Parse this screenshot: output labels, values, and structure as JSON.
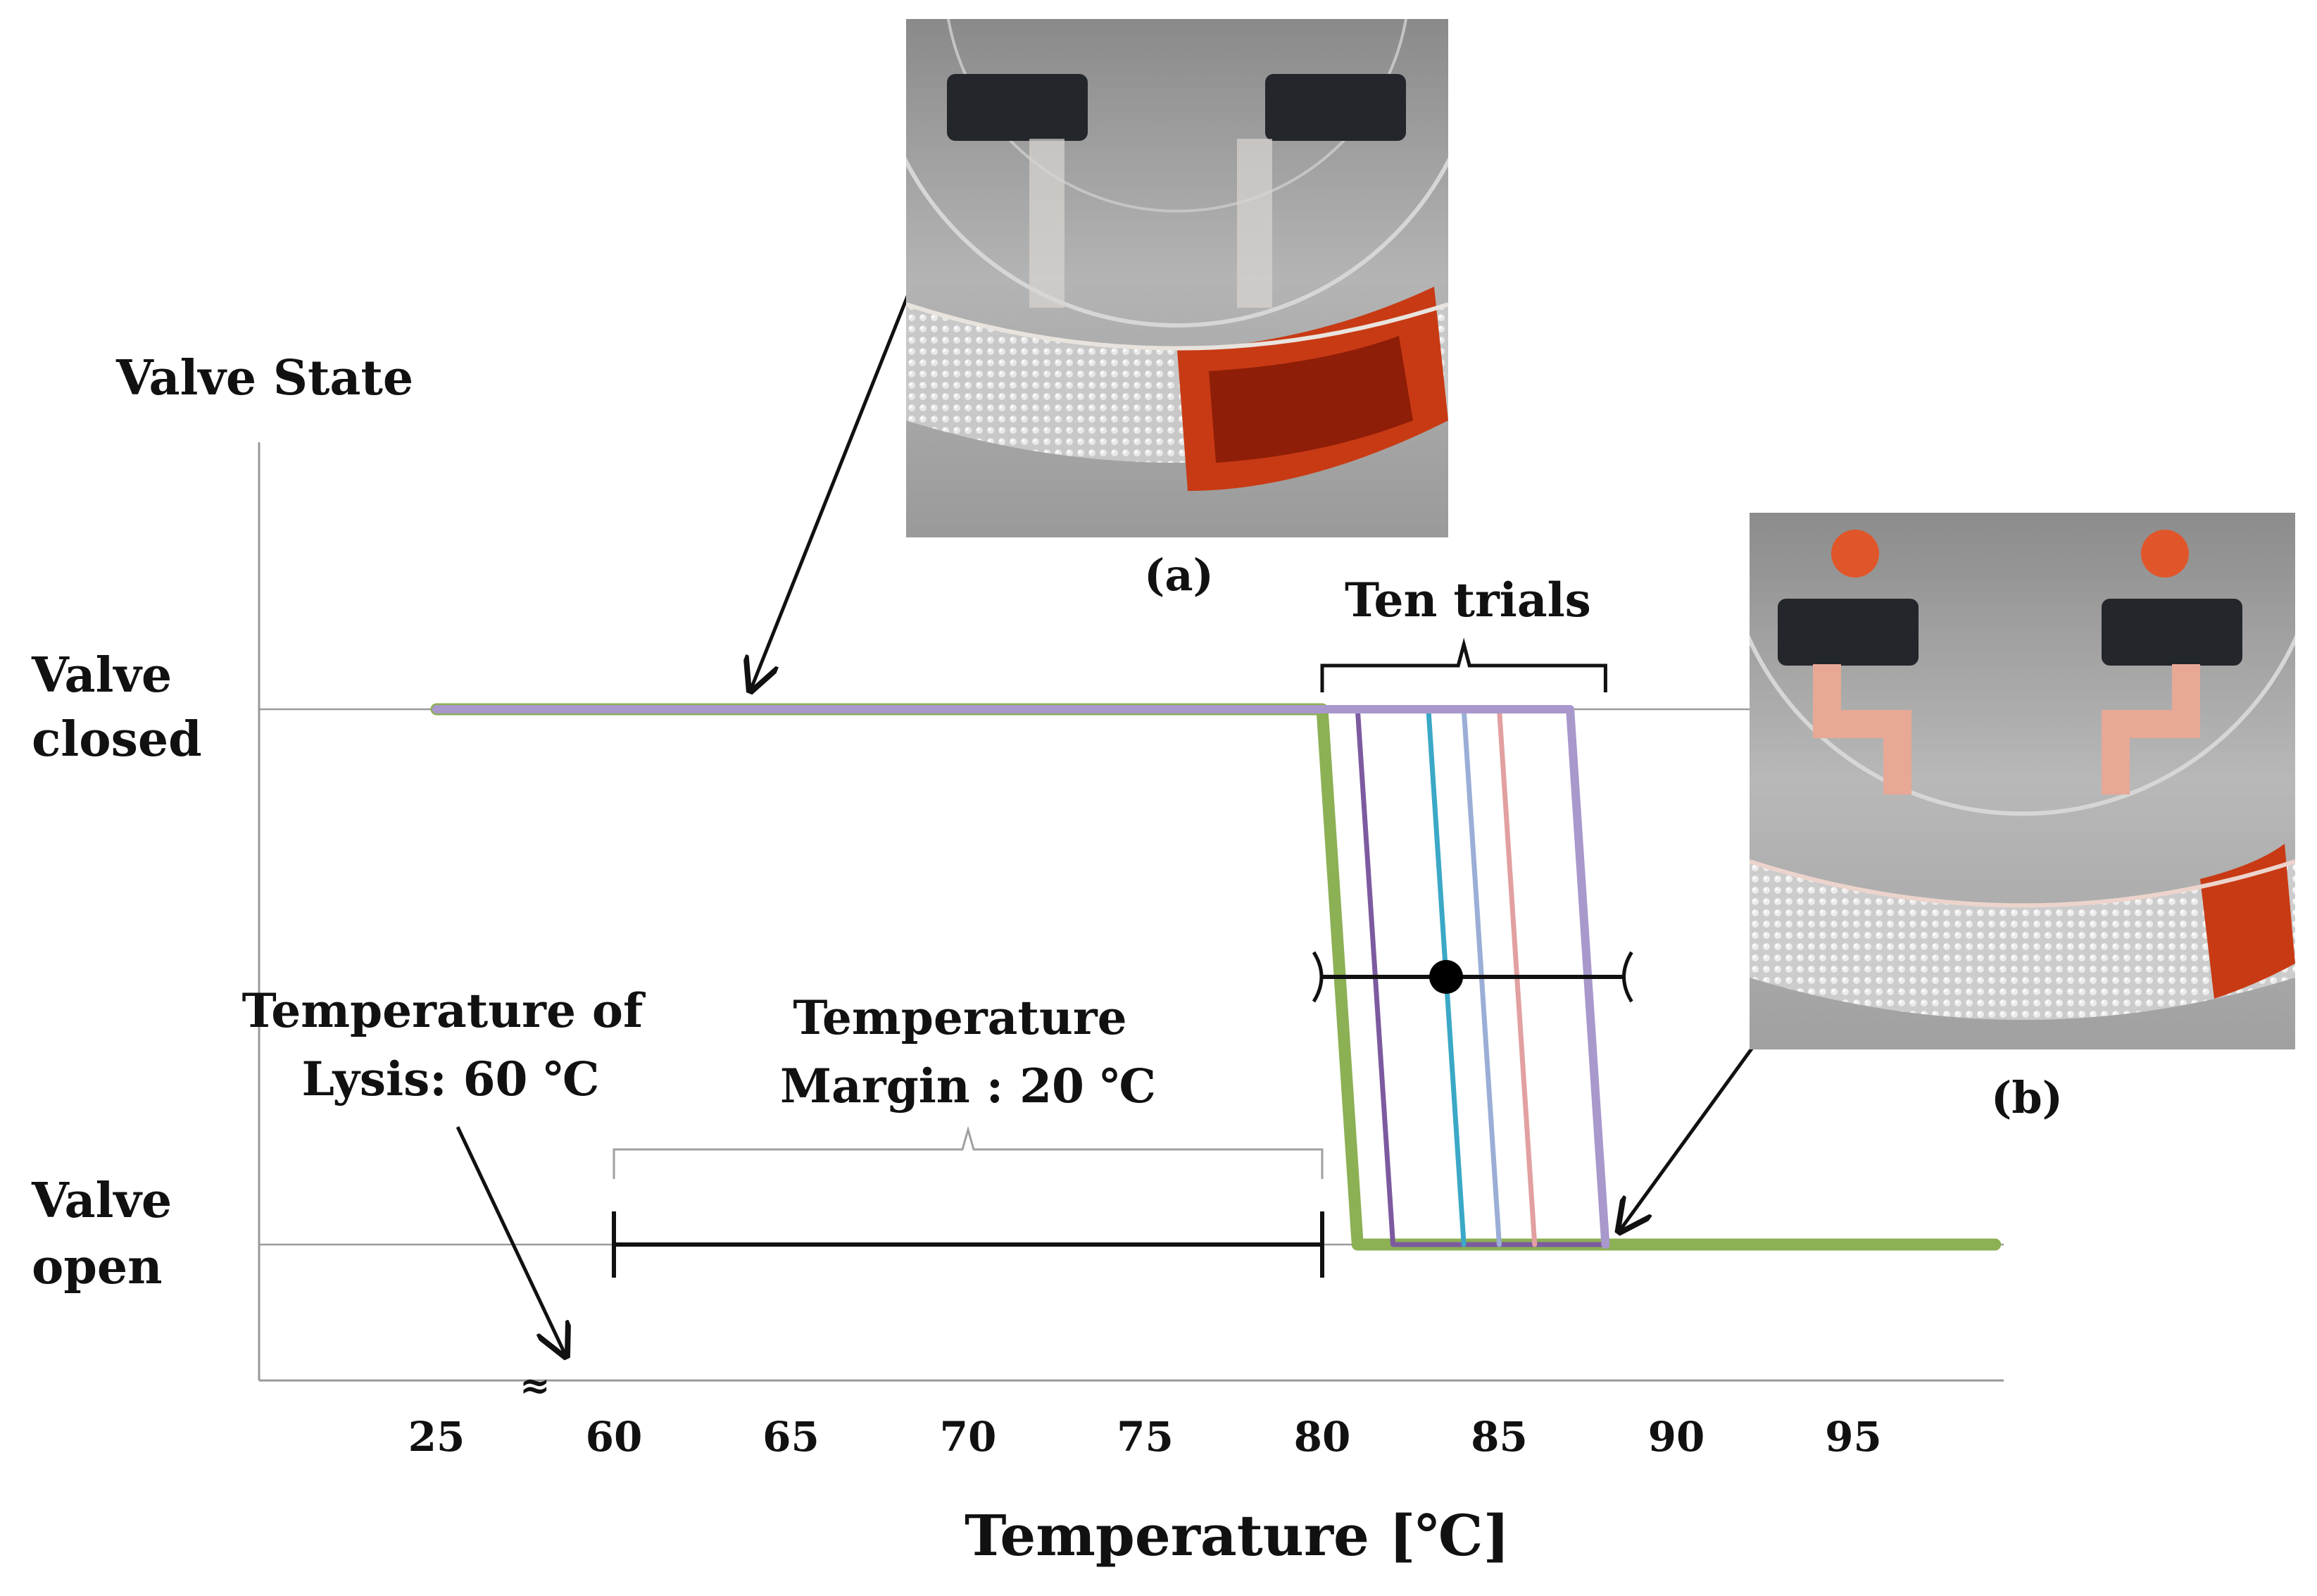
{
  "chart_data": {
    "type": "line",
    "title": "",
    "xlabel": "Temperature [℃]",
    "ylabel": "Valve State",
    "x_ticks": [
      25,
      60,
      65,
      70,
      75,
      80,
      85,
      90,
      95
    ],
    "x_axis_break": "≈",
    "y_states": [
      {
        "label": "Valve\nclosed",
        "value": 1
      },
      {
        "label": "Valve\nopen",
        "value": 0
      }
    ],
    "colors": {
      "green": "#8cb054",
      "lavender": "#a898cc",
      "purple": "#7d5aa0",
      "teal": "#3aa8c6",
      "steel": "#9aaed6",
      "pink": "#e2a0a0",
      "black": "#111111",
      "grey": "#a0a0a0"
    },
    "series": [
      {
        "color": "green",
        "points": [
          [
            25,
            1
          ],
          [
            80,
            1
          ],
          [
            81,
            0
          ],
          [
            99,
            0
          ]
        ]
      },
      {
        "color": "purple",
        "points": [
          [
            81,
            1
          ],
          [
            82,
            0
          ],
          [
            88,
            0
          ]
        ]
      },
      {
        "color": "teal",
        "points": [
          [
            83,
            1
          ],
          [
            84,
            0
          ]
        ]
      },
      {
        "color": "steel",
        "points": [
          [
            84,
            1
          ],
          [
            85,
            0
          ]
        ]
      },
      {
        "color": "pink",
        "points": [
          [
            85,
            1
          ],
          [
            86,
            0
          ]
        ]
      },
      {
        "color": "lavender",
        "points": [
          [
            25,
            1
          ],
          [
            87,
            1
          ],
          [
            88,
            0
          ]
        ]
      }
    ],
    "mean_marker": {
      "x": 83.5,
      "y": 0.5,
      "x_min": 80,
      "x_max": 88.5
    },
    "annotations": {
      "ten_trials": {
        "text": "Ten trials",
        "x_start": 80,
        "x_end": 88
      },
      "lysis": {
        "line1": "Temperature of",
        "line2": "Lysis: 60 ℃",
        "points_to_x": 59
      },
      "margin": {
        "line1": "Temperature",
        "line2": "Margin : 20 ℃",
        "x_start": 60,
        "x_end": 80
      },
      "photo_a_label": "(a)",
      "photo_b_label": "(b)"
    }
  }
}
